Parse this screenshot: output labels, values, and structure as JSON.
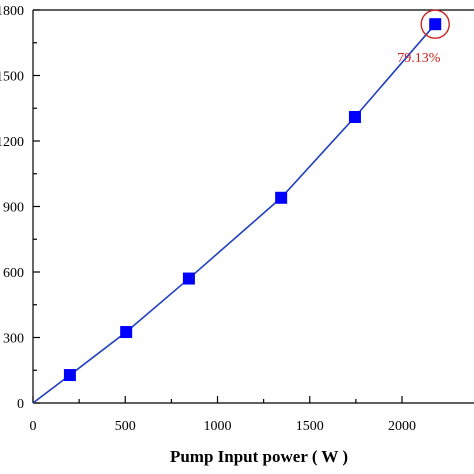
{
  "chart_data": {
    "type": "line",
    "xlabel": "Pump Input power ( W )",
    "ylabel": "",
    "xlim": [
      0,
      2400
    ],
    "ylim": [
      0,
      1800
    ],
    "x_ticks": [
      0,
      500,
      1000,
      1500,
      2000
    ],
    "y_ticks": [
      0,
      300,
      600,
      900,
      1200,
      1500,
      1800
    ],
    "y_tick_labels": [
      "0",
      "300",
      "600",
      "900",
      "1200",
      "1500",
      "1800"
    ],
    "grid": false,
    "series": [
      {
        "name": "",
        "color": "#0000ff",
        "line_color": "#1f3fbf",
        "marker": "square",
        "x": [
          0,
          200,
          505,
          845,
          1345,
          1745,
          2180
        ],
        "y": [
          0,
          128,
          325,
          570,
          940,
          1310,
          1735
        ],
        "marker_indices": [
          1,
          2,
          3,
          4,
          5,
          6
        ]
      }
    ],
    "annotation": {
      "text": "79.13%",
      "color": "#cc2222",
      "point_index": 6
    }
  }
}
